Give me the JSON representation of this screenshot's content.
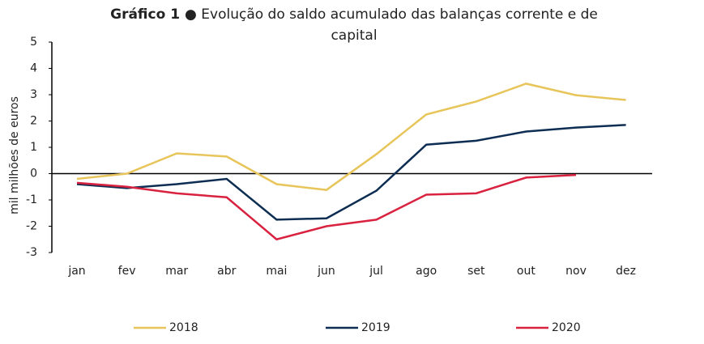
{
  "chart_data": {
    "type": "line",
    "title": {
      "number": "Gráfico 1",
      "text": "● Evolução do saldo acumulado das balanças corrente e de capital"
    },
    "y_label": "mil milhões de euros",
    "categories": [
      "jan",
      "fev",
      "mar",
      "abr",
      "mai",
      "jun",
      "jul",
      "ago",
      "set",
      "out",
      "nov",
      "dez"
    ],
    "series": [
      {
        "name": "2018",
        "color": "#e8c55a",
        "values": [
          -0.2,
          0.0,
          0.77,
          0.65,
          -0.4,
          -0.62,
          0.74,
          2.25,
          2.74,
          3.42,
          2.98,
          2.8
        ]
      },
      {
        "name": "2019",
        "color": "#0d2d52",
        "values": [
          -0.4,
          -0.55,
          -0.4,
          -0.2,
          -1.75,
          -1.7,
          -0.65,
          1.1,
          1.25,
          1.6,
          1.75,
          1.85
        ]
      },
      {
        "name": "2020",
        "color": "#d9223f",
        "values": [
          -0.35,
          -0.5,
          -0.75,
          -0.9,
          -2.5,
          -2.0,
          -1.75,
          -0.8,
          -0.75,
          -0.15,
          -0.05,
          null
        ]
      }
    ],
    "ylim": [
      -3,
      5
    ],
    "yticks": [
      -3,
      -2,
      -1,
      0,
      1,
      2,
      3,
      4,
      5
    ],
    "grid": false,
    "legend": "bottom"
  }
}
